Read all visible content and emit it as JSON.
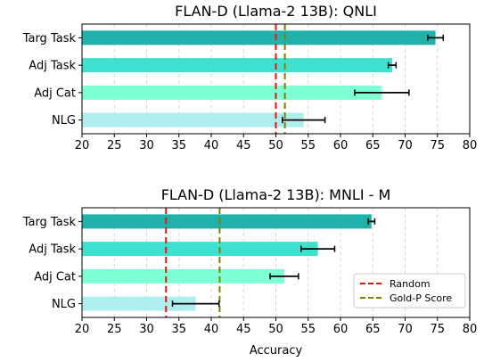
{
  "chart_data": [
    {
      "type": "bar",
      "orientation": "horizontal",
      "title": "FLAN-D (Llama-2 13B): QNLI",
      "categories": [
        "Targ Task",
        "Adj Task",
        "Adj Cat",
        "NLG"
      ],
      "values": [
        74.7,
        68.0,
        66.4,
        54.3
      ],
      "errors": [
        1.2,
        0.6,
        4.2,
        3.3
      ],
      "xlim": [
        20,
        80
      ],
      "xticks": [
        20,
        25,
        30,
        35,
        40,
        45,
        50,
        55,
        60,
        65,
        70,
        75,
        80
      ],
      "xlabel": "",
      "reference_lines": [
        {
          "name": "Random",
          "value": 50,
          "color": "#ee1111",
          "style": "dashed"
        },
        {
          "name": "Gold-P Score",
          "value": 51.4,
          "color": "#808000",
          "style": "dashed"
        }
      ],
      "grid": "x",
      "legend": false
    },
    {
      "type": "bar",
      "orientation": "horizontal",
      "title": "FLAN-D (Llama-2 13B): MNLI - M",
      "categories": [
        "Targ Task",
        "Adj Task",
        "Adj Cat",
        "NLG"
      ],
      "values": [
        64.8,
        56.5,
        51.3,
        37.6
      ],
      "errors": [
        0.5,
        2.6,
        2.2,
        3.6
      ],
      "xlim": [
        20,
        80
      ],
      "xticks": [
        20,
        25,
        30,
        35,
        40,
        45,
        50,
        55,
        60,
        65,
        70,
        75,
        80
      ],
      "xlabel": "Accuracy",
      "reference_lines": [
        {
          "name": "Random",
          "value": 33.0,
          "color": "#ee1111",
          "style": "dashed"
        },
        {
          "name": "Gold-P Score",
          "value": 41.3,
          "color": "#808000",
          "style": "dashed"
        }
      ],
      "grid": "x",
      "legend": true,
      "legend_position": "lower-right"
    }
  ],
  "bar_colors": [
    "#20b2aa",
    "#40e0d0",
    "#7fffd4",
    "#afeeee"
  ],
  "error_color": "#000000",
  "grid_color": "#d8d8d8"
}
